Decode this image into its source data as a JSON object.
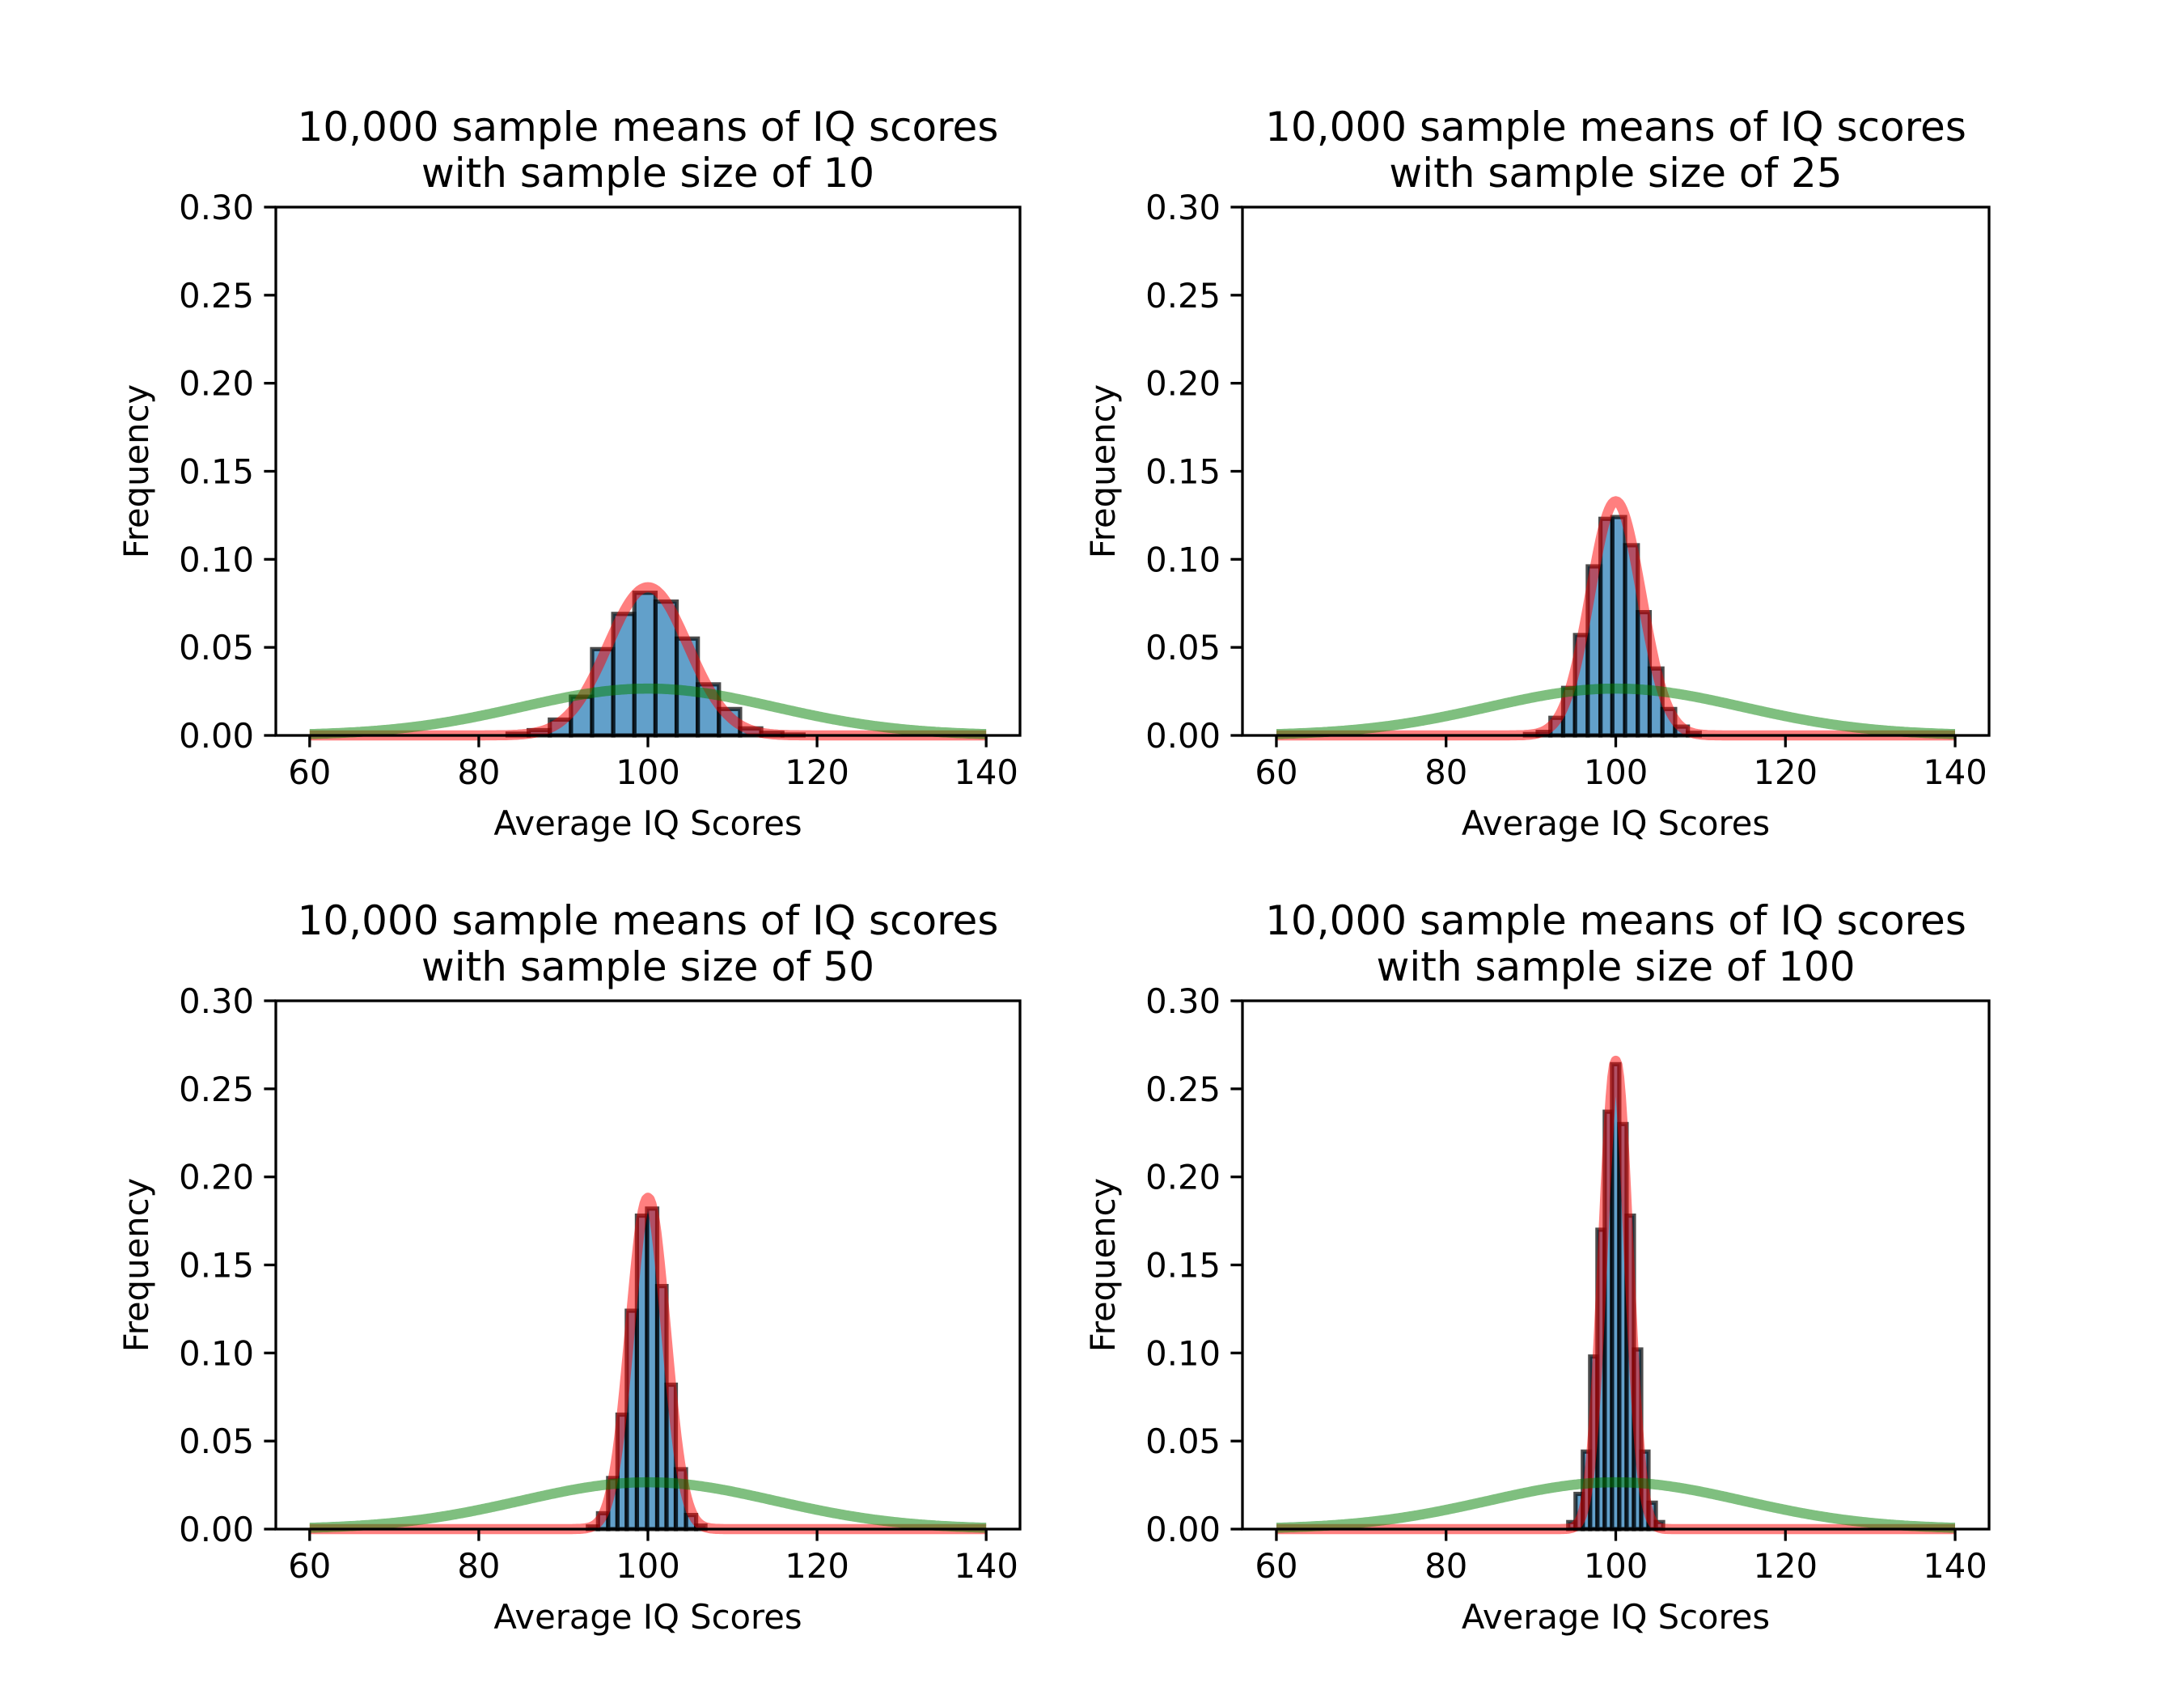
{
  "colors": {
    "bar_fill": "#1f77b4",
    "bar_edge": "#000000",
    "sample_curve": "#ff0000",
    "population_curve": "#008000"
  },
  "chart_data": [
    {
      "type": "bar",
      "title": [
        "10,000 sample means of IQ scores",
        "with sample size of 10"
      ],
      "xlabel": "Average IQ Scores",
      "ylabel": "Frequency",
      "xlim": [
        56,
        144
      ],
      "ylim": [
        0,
        0.3
      ],
      "xticks": [
        60,
        80,
        100,
        120,
        140
      ],
      "yticks": [
        "0.00",
        "0.05",
        "0.10",
        "0.15",
        "0.20",
        "0.25",
        "0.30"
      ],
      "bin_edges": [
        83.4,
        85.9,
        88.4,
        90.9,
        93.4,
        95.9,
        98.4,
        100.9,
        103.4,
        105.9,
        108.4,
        110.9,
        113.4,
        115.9,
        118.4
      ],
      "values": [
        0.001,
        0.003,
        0.009,
        0.022,
        0.049,
        0.069,
        0.081,
        0.076,
        0.055,
        0.029,
        0.015,
        0.004,
        0.0015,
        0.0005
      ],
      "curves": [
        {
          "kind": "normal",
          "mean": 100,
          "sd": 4.74,
          "x_range": [
            60,
            140
          ],
          "color": "#ff0000"
        },
        {
          "kind": "normal",
          "mean": 100,
          "sd": 15,
          "x_range": [
            60,
            140
          ],
          "color": "#008000"
        }
      ]
    },
    {
      "type": "bar",
      "title": [
        "10,000 sample means of IQ scores",
        "with sample size of 25"
      ],
      "xlabel": "Average IQ Scores",
      "ylabel": "Frequency",
      "xlim": [
        56,
        144
      ],
      "ylim": [
        0,
        0.3
      ],
      "xticks": [
        60,
        80,
        100,
        120,
        140
      ],
      "yticks": [
        "0.00",
        "0.05",
        "0.10",
        "0.15",
        "0.20",
        "0.25",
        "0.30"
      ],
      "bin_edges": [
        89.3,
        90.8,
        92.3,
        93.8,
        95.2,
        96.7,
        98.2,
        99.6,
        101.1,
        102.6,
        104.0,
        105.5,
        107.0,
        108.5,
        109.9
      ],
      "values": [
        0.0008,
        0.002,
        0.01,
        0.027,
        0.057,
        0.096,
        0.123,
        0.124,
        0.108,
        0.07,
        0.038,
        0.015,
        0.005,
        0.0015
      ],
      "curves": [
        {
          "kind": "normal",
          "mean": 100,
          "sd": 3,
          "x_range": [
            60,
            140
          ],
          "color": "#ff0000"
        },
        {
          "kind": "normal",
          "mean": 100,
          "sd": 15,
          "x_range": [
            60,
            140
          ],
          "color": "#008000"
        }
      ]
    },
    {
      "type": "bar",
      "title": [
        "10,000 sample means of IQ scores",
        "with sample size of 50"
      ],
      "xlabel": "Average IQ Scores",
      "ylabel": "Frequency",
      "xlim": [
        56,
        144
      ],
      "ylim": [
        0,
        0.3
      ],
      "xticks": [
        60,
        80,
        100,
        120,
        140
      ],
      "yticks": [
        "0.00",
        "0.05",
        "0.10",
        "0.15",
        "0.20",
        "0.25",
        "0.30"
      ],
      "bin_edges": [
        92.9,
        94.1,
        95.3,
        96.4,
        97.5,
        98.7,
        99.9,
        101.1,
        102.2,
        103.3,
        104.5,
        105.7,
        106.8
      ],
      "values": [
        0.0015,
        0.009,
        0.029,
        0.065,
        0.124,
        0.178,
        0.182,
        0.138,
        0.082,
        0.034,
        0.008,
        0.002
      ],
      "curves": [
        {
          "kind": "normal",
          "mean": 100,
          "sd": 2.12,
          "x_range": [
            60,
            140
          ],
          "color": "#ff0000"
        },
        {
          "kind": "normal",
          "mean": 100,
          "sd": 15,
          "x_range": [
            60,
            140
          ],
          "color": "#008000"
        }
      ]
    },
    {
      "type": "bar",
      "title": [
        "10,000 sample means of IQ scores",
        "with sample size of 100"
      ],
      "xlabel": "Average IQ Scores",
      "ylabel": "Frequency",
      "xlim": [
        56,
        144
      ],
      "ylim": [
        0,
        0.3
      ],
      "xticks": [
        60,
        80,
        100,
        120,
        140
      ],
      "yticks": [
        "0.00",
        "0.05",
        "0.10",
        "0.15",
        "0.20",
        "0.25",
        "0.30"
      ],
      "bin_edges": [
        94.4,
        95.26,
        96.12,
        96.98,
        97.84,
        98.7,
        99.56,
        100.42,
        101.28,
        102.14,
        103.0,
        103.86,
        104.72,
        105.58
      ],
      "values": [
        0.004,
        0.02,
        0.044,
        0.098,
        0.17,
        0.237,
        0.264,
        0.23,
        0.178,
        0.102,
        0.044,
        0.015,
        0.004
      ],
      "curves": [
        {
          "kind": "normal",
          "mean": 100,
          "sd": 1.5,
          "x_range": [
            60,
            140
          ],
          "color": "#ff0000"
        },
        {
          "kind": "normal",
          "mean": 100,
          "sd": 15,
          "x_range": [
            60,
            140
          ],
          "color": "#008000"
        }
      ]
    }
  ]
}
